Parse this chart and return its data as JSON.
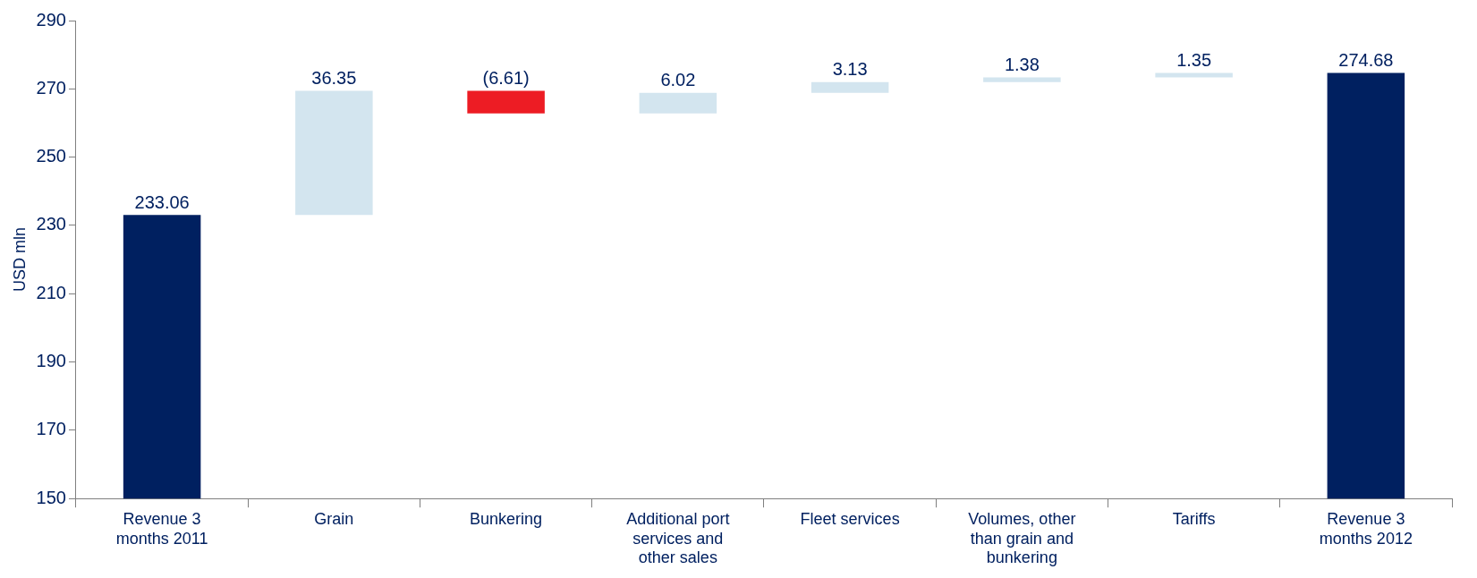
{
  "chart_data": {
    "type": "bar",
    "ylabel": "USD mln",
    "categories": [
      "Revenue 3 months 2011",
      "Grain",
      "Bunkering",
      "Additional port services and other sales",
      "Fleet services",
      "Volumes, other than grain and bunkering",
      "Tariffs",
      "Revenue 3 months 2012"
    ],
    "values": [
      233.06,
      36.35,
      -6.61,
      6.02,
      3.13,
      1.38,
      1.35,
      274.68
    ],
    "base": [
      null,
      233.06,
      269.41,
      262.8,
      268.82,
      271.95,
      273.33,
      null
    ],
    "colors": [
      "#002060",
      "#d3e5ef",
      "#ed1c24",
      "#d3e5ef",
      "#d3e5ef",
      "#d3e5ef",
      "#d3e5ef",
      "#002060"
    ],
    "value_labels": [
      "233.06",
      "36.35",
      "(6.61)",
      "6.02",
      "3.13",
      "1.38",
      "1.35",
      "274.68"
    ],
    "ylim": [
      150,
      290
    ],
    "yticks": [
      150,
      170,
      190,
      210,
      230,
      250,
      270,
      290
    ],
    "grid": false,
    "legend": false
  }
}
